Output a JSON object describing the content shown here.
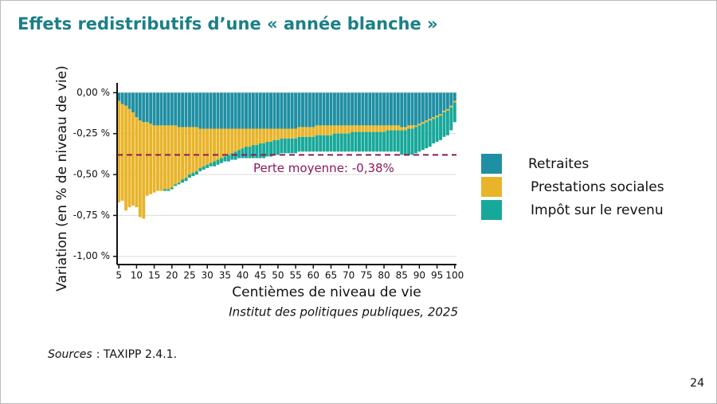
{
  "chart_data": {
    "type": "stacked_bar",
    "title": "Effets redistributifs d’une « année blanche »",
    "ylabel": "Variation (en % de niveau de vie)",
    "xlabel": "Centièmes de niveau de vie",
    "credit": "Institut des politiques publiques, 2025",
    "sources_label": "Sources",
    "sources_text": ": TAXIPP 2.4.1.",
    "page_number": "24",
    "mean": -0.38,
    "mean_label": "Perte moyenne: -0,38%",
    "mean_color": "#8b1a5a",
    "xlim": [
      4.5,
      100.5
    ],
    "xticks": [
      5,
      10,
      15,
      20,
      25,
      30,
      35,
      40,
      45,
      50,
      55,
      60,
      65,
      70,
      75,
      80,
      85,
      90,
      95,
      100
    ],
    "ylim": [
      -1.05,
      0.06
    ],
    "yticks": [
      {
        "value": 0,
        "label": "0,00 %"
      },
      {
        "value": -0.25,
        "label": "-0,25 %"
      },
      {
        "value": -0.5,
        "label": "-0,50 %"
      },
      {
        "value": -0.75,
        "label": "-0,75 %"
      },
      {
        "value": -1,
        "label": "-1,00 %"
      }
    ],
    "grid": true,
    "legend": "right",
    "x": [
      5,
      6,
      7,
      8,
      9,
      10,
      11,
      12,
      13,
      14,
      15,
      16,
      17,
      18,
      19,
      20,
      21,
      22,
      23,
      24,
      25,
      26,
      27,
      28,
      29,
      30,
      31,
      32,
      33,
      34,
      35,
      36,
      37,
      38,
      39,
      40,
      41,
      42,
      43,
      44,
      45,
      46,
      47,
      48,
      49,
      50,
      51,
      52,
      53,
      54,
      55,
      56,
      57,
      58,
      59,
      60,
      61,
      62,
      63,
      64,
      65,
      66,
      67,
      68,
      69,
      70,
      71,
      72,
      73,
      74,
      75,
      76,
      77,
      78,
      79,
      80,
      81,
      82,
      83,
      84,
      85,
      86,
      87,
      88,
      89,
      90,
      91,
      92,
      93,
      94,
      95,
      96,
      97,
      98,
      99,
      100
    ],
    "series": [
      {
        "name": "Retraites",
        "color": "#1f8fa3",
        "values": [
          -0.05,
          -0.07,
          -0.08,
          -0.1,
          -0.12,
          -0.15,
          -0.17,
          -0.18,
          -0.18,
          -0.19,
          -0.2,
          -0.2,
          -0.2,
          -0.2,
          -0.2,
          -0.2,
          -0.2,
          -0.21,
          -0.21,
          -0.21,
          -0.21,
          -0.21,
          -0.21,
          -0.22,
          -0.22,
          -0.22,
          -0.22,
          -0.22,
          -0.22,
          -0.22,
          -0.22,
          -0.22,
          -0.22,
          -0.22,
          -0.22,
          -0.22,
          -0.22,
          -0.22,
          -0.22,
          -0.22,
          -0.22,
          -0.22,
          -0.22,
          -0.22,
          -0.22,
          -0.22,
          -0.22,
          -0.22,
          -0.22,
          -0.22,
          -0.22,
          -0.21,
          -0.21,
          -0.21,
          -0.21,
          -0.21,
          -0.2,
          -0.2,
          -0.2,
          -0.2,
          -0.2,
          -0.2,
          -0.2,
          -0.2,
          -0.2,
          -0.2,
          -0.2,
          -0.2,
          -0.2,
          -0.2,
          -0.2,
          -0.2,
          -0.2,
          -0.2,
          -0.2,
          -0.2,
          -0.2,
          -0.2,
          -0.2,
          -0.2,
          -0.21,
          -0.21,
          -0.2,
          -0.2,
          -0.2,
          -0.19,
          -0.18,
          -0.17,
          -0.16,
          -0.15,
          -0.14,
          -0.13,
          -0.11,
          -0.1,
          -0.08,
          -0.05
        ]
      },
      {
        "name": "Prestations sociales",
        "color": "#e8b42a",
        "values": [
          -0.62,
          -0.59,
          -0.64,
          -0.6,
          -0.57,
          -0.55,
          -0.59,
          -0.59,
          -0.45,
          -0.43,
          -0.41,
          -0.4,
          -0.4,
          -0.39,
          -0.39,
          -0.38,
          -0.36,
          -0.34,
          -0.32,
          -0.31,
          -0.29,
          -0.28,
          -0.27,
          -0.24,
          -0.23,
          -0.22,
          -0.21,
          -0.2,
          -0.19,
          -0.18,
          -0.17,
          -0.16,
          -0.15,
          -0.14,
          -0.13,
          -0.12,
          -0.11,
          -0.11,
          -0.1,
          -0.1,
          -0.09,
          -0.09,
          -0.08,
          -0.08,
          -0.07,
          -0.07,
          -0.06,
          -0.06,
          -0.06,
          -0.06,
          -0.06,
          -0.06,
          -0.06,
          -0.06,
          -0.06,
          -0.06,
          -0.06,
          -0.06,
          -0.06,
          -0.06,
          -0.06,
          -0.05,
          -0.05,
          -0.05,
          -0.05,
          -0.05,
          -0.04,
          -0.04,
          -0.04,
          -0.04,
          -0.04,
          -0.04,
          -0.04,
          -0.04,
          -0.04,
          -0.04,
          -0.03,
          -0.03,
          -0.03,
          -0.03,
          -0.02,
          -0.02,
          -0.02,
          -0.02,
          -0.01,
          -0.01,
          -0.01,
          -0.01,
          -0.01,
          -0.01,
          -0.01,
          -0.01,
          -0.01,
          -0.01,
          -0.01,
          -0.01
        ]
      },
      {
        "name": "Impôt sur le revenu",
        "color": "#17a89a",
        "values": [
          0,
          0,
          0,
          0,
          0,
          0,
          0,
          0,
          0,
          0,
          0,
          0,
          0,
          -0.01,
          -0.01,
          -0.01,
          -0.01,
          -0.01,
          -0.02,
          -0.02,
          -0.02,
          -0.02,
          -0.02,
          -0.02,
          -0.02,
          -0.02,
          -0.02,
          -0.03,
          -0.03,
          -0.03,
          -0.03,
          -0.04,
          -0.04,
          -0.05,
          -0.05,
          -0.06,
          -0.07,
          -0.07,
          -0.08,
          -0.08,
          -0.09,
          -0.09,
          -0.09,
          -0.09,
          -0.09,
          -0.09,
          -0.09,
          -0.09,
          -0.09,
          -0.09,
          -0.09,
          -0.09,
          -0.09,
          -0.09,
          -0.09,
          -0.09,
          -0.1,
          -0.1,
          -0.1,
          -0.1,
          -0.1,
          -0.11,
          -0.11,
          -0.11,
          -0.11,
          -0.11,
          -0.12,
          -0.12,
          -0.12,
          -0.12,
          -0.12,
          -0.12,
          -0.12,
          -0.12,
          -0.12,
          -0.12,
          -0.13,
          -0.13,
          -0.13,
          -0.13,
          -0.15,
          -0.15,
          -0.16,
          -0.16,
          -0.16,
          -0.16,
          -0.16,
          -0.16,
          -0.16,
          -0.15,
          -0.15,
          -0.15,
          -0.15,
          -0.15,
          -0.14,
          -0.12
        ]
      }
    ]
  }
}
